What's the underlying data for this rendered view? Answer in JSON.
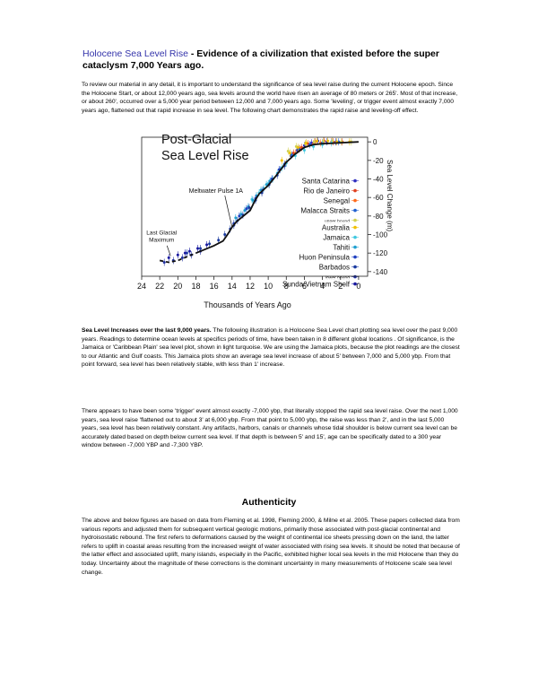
{
  "doc": {
    "title_link": "Holocene Sea Level Rise",
    "title_rest": " - Evidence of a civilization that existed before the super cataclysm  7,000 Years ago.",
    "intro": "To review our material in any detail, it is important to understand the significance of sea level raise during the current Holocene epoch. Since the Holocene Start, or about 12,000 years ago, sea levels around the world have risen an average of 80 meters or 265'. Most of that increase, or about 260', occurred over a 5,000 year period between 12,000 and 7,000 years ago. Some 'leveling', or trigger event almost exactly 7,000 years ago, flattened out that rapid increase in sea level. The following chart demonstrates the rapid raise and leveling-off effect.",
    "p2_bold": "Sea Level Increases over the last 9,000 years.",
    "p2_rest": " The following illustration is a Holocene Sea Level chart plotting sea level over the past 9,000 years. Readings to determine ocean levels at specifics periods of time, have been taken in 8 different global locations . Of significance, is the Jamaica or 'Caribbean Plain' sea level plot, shown in light turquoise. We are using the Jamaica plots, because the plot readings are the closest to our Atlantic and Gulf coasts. This Jamaica plots show an average sea level increase of about 5' between 7,000 and 5,000 ybp. From that point forward, sea level has been relatively stable, with less than 1' increase.",
    "p3": "There appears to have been some 'trigger' event almost exactly -7,000 ybp, that literally stopped the rapid sea level raise. Over the next 1,000 years, sea level raise 'flattened out to about 3' at 6,000 ybp. From that point to 5,000 ybp, the raise was less than 2', and in the last 5,000 years, sea level has been relatively constant. Any artifacts, harbors, canals or channels whose tidal shoulder is below current sea level can be accurately dated based on depth below current sea level. If that depth is between 5' and 15', age can be specifically dated to a 300 year window between -7,000 YBP and -7,300 YBP.",
    "heading": "Authenticity",
    "p4": "The above and below figures are based on data from Fleming et al. 1998, Fleming 2000, & Milne et al. 2005. These papers collected data from various reports and adjusted them for subsequent vertical geologic motions, primarily those associated with post-glacial continental and hydroisostatic rebound. The first refers to deformations caused by the weight of continental ice sheets pressing down on the land, the latter refers to uplift in coastal areas resulting from the increased weight of water associated with rising sea levels. It should be noted that because of the latter effect and associated uplift, many islands, especially in the Pacific, exhibited higher local sea levels in the mid Holocene than they do today. Uncertainty about the magnitude of these corrections is the dominant uncertainty in many measurements of Holocene scale sea level change."
  },
  "chart_data": {
    "type": "scatter",
    "title": "Post-Glacial Sea Level Rise",
    "xlabel": "Thousands of Years Ago",
    "ylabel": "Sea Level Change (m)",
    "xlim": [
      24,
      -1
    ],
    "ylim": [
      -145,
      5
    ],
    "x_ticks": [
      24,
      22,
      20,
      18,
      16,
      14,
      12,
      10,
      8,
      6,
      4,
      2,
      0
    ],
    "y_ticks": [
      0,
      -20,
      -40,
      -60,
      -80,
      -100,
      -120,
      -140
    ],
    "annotations": [
      {
        "text": "Meltwater Pulse 1A",
        "x": 14,
        "y": -90
      },
      {
        "text": "Last Glacial Maximum",
        "x": 21,
        "y": -125
      }
    ],
    "trend": {
      "x": [
        22,
        21,
        20,
        19,
        18,
        17,
        16,
        15,
        14.5,
        14,
        13.5,
        13,
        12,
        11.5,
        11,
        10,
        9,
        8,
        7,
        6,
        5,
        4,
        3,
        2,
        1,
        0
      ],
      "y": [
        -128,
        -130,
        -128,
        -124,
        -120,
        -116,
        -112,
        -107,
        -100,
        -92,
        -86,
        -82,
        -74,
        -64,
        -56,
        -47,
        -35,
        -22,
        -13,
        -6,
        -3,
        -2,
        -1.5,
        -1,
        -0.5,
        0
      ]
    },
    "series": [
      {
        "name": "Santa Catarina",
        "color": "#3030c0",
        "x": [
          7.5,
          6.8,
          6.0,
          5.2,
          4.5,
          3.5,
          2.5
        ],
        "y": [
          -15,
          -9,
          -4,
          -1,
          1,
          0,
          0
        ]
      },
      {
        "name": "Rio de Janeiro",
        "color": "#e04020",
        "x": [
          7.2,
          6.3,
          5.6,
          4.8,
          3.8,
          2.8,
          1.8
        ],
        "y": [
          -12,
          -6,
          -2,
          0,
          1,
          0,
          0
        ]
      },
      {
        "name": "Senegal",
        "color": "#ff6a1a",
        "x": [
          8.0,
          7.0,
          6.5,
          5.0,
          4.2,
          3.0
        ],
        "y": [
          -22,
          -12,
          -7,
          -2,
          -1,
          0
        ]
      },
      {
        "name": "Malacca Straits",
        "color": "#2060d0",
        "x": [
          9.5,
          8.7,
          8.2,
          7.4,
          6.6,
          5.4,
          4.0,
          2.2
        ],
        "y": [
          -40,
          -30,
          -24,
          -14,
          -8,
          -3,
          -1,
          0
        ]
      },
      {
        "name": "upper bound",
        "color": "#d0d050",
        "x": [
          7.8,
          6.9,
          5.9,
          4.9,
          3.9,
          2.9,
          1.9,
          0.8
        ],
        "y": [
          -10,
          -5,
          -2,
          0,
          1,
          1,
          0,
          0
        ]
      },
      {
        "name": "Australia",
        "color": "#f0c000",
        "x": [
          8.5,
          7.6,
          6.7,
          5.8,
          4.6,
          3.4,
          2.4,
          1.0
        ],
        "y": [
          -20,
          -12,
          -6,
          -1,
          1,
          1,
          0,
          0
        ]
      },
      {
        "name": "Jamaica",
        "color": "#40c8e0",
        "x": [
          11.8,
          11.0,
          10.5,
          10.0,
          9.5,
          9.0,
          8.5,
          8.0,
          7.0,
          6.0,
          5.0,
          4.0,
          3.0
        ],
        "y": [
          -62,
          -55,
          -50,
          -45,
          -40,
          -34,
          -28,
          -23,
          -15,
          -9,
          -5,
          -3,
          -1
        ]
      },
      {
        "name": "Tahiti",
        "color": "#20a0d0",
        "x": [
          13.6,
          13.0,
          12.6,
          12.2,
          11.7,
          11.3,
          10.8,
          10.2,
          9.8
        ],
        "y": [
          -82,
          -78,
          -74,
          -70,
          -63,
          -58,
          -52,
          -46,
          -42
        ]
      },
      {
        "name": "Huon Peninsula",
        "color": "#2040c0",
        "x": [
          13.8,
          13.2,
          12.4,
          11.4,
          10.6,
          9.6,
          8.8
        ],
        "y": [
          -88,
          -80,
          -72,
          -61,
          -52,
          -40,
          -30
        ]
      },
      {
        "name": "Barbados",
        "color": "#1a3aa0",
        "x": [
          19.0,
          17.5,
          16.5,
          15.5,
          14.8,
          14.2,
          13.8,
          13.4,
          12.8,
          12.1,
          11.4,
          10.7,
          9.9,
          9.0,
          8.2
        ],
        "y": [
          -120,
          -115,
          -110,
          -106,
          -100,
          -94,
          -90,
          -85,
          -79,
          -71,
          -63,
          -55,
          -46,
          -36,
          -26
        ]
      },
      {
        "name": "lower bound",
        "color": "#2030a0",
        "x": [
          21.5,
          20.5,
          19.5,
          18.5,
          17.5
        ],
        "y": [
          -130,
          -128,
          -125,
          -122,
          -118
        ]
      },
      {
        "name": "Sunda/Vietnam Shelf",
        "color": "#1a1aa0",
        "x": [
          21.0,
          20.0,
          19.2,
          18.7,
          17.8,
          16.8
        ],
        "y": [
          -125,
          -122,
          -120,
          -118,
          -115,
          -111
        ]
      }
    ]
  }
}
